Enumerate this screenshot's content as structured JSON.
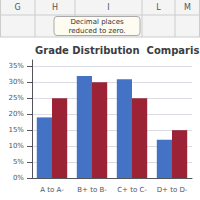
{
  "chart_data": {
    "type": "bar",
    "title": "Grade Distribution  Comparis",
    "categories": [
      "A to A-",
      "B+ to B-",
      "C+ to C-",
      "D+ to D-"
    ],
    "series": [
      {
        "color": "#4472C4",
        "values": [
          19,
          32,
          31,
          12
        ]
      },
      {
        "color": "#9B2335",
        "values": [
          25,
          30,
          25,
          15
        ]
      }
    ],
    "ylim": [
      0,
      37
    ],
    "yticks": [
      {
        "value": 0,
        "label": "0%"
      },
      {
        "value": 5,
        "label": "5%"
      },
      {
        "value": 10,
        "label": "10%"
      },
      {
        "value": 15,
        "label": "15%"
      },
      {
        "value": 20,
        "label": "20%"
      },
      {
        "value": 25,
        "label": "25%"
      },
      {
        "value": 30,
        "label": "30%"
      },
      {
        "value": 35,
        "label": "35%"
      }
    ],
    "grid": true,
    "annotations": [
      "G",
      "H",
      "I",
      "L",
      "M",
      "Decimal places\nreduced to zero."
    ]
  }
}
